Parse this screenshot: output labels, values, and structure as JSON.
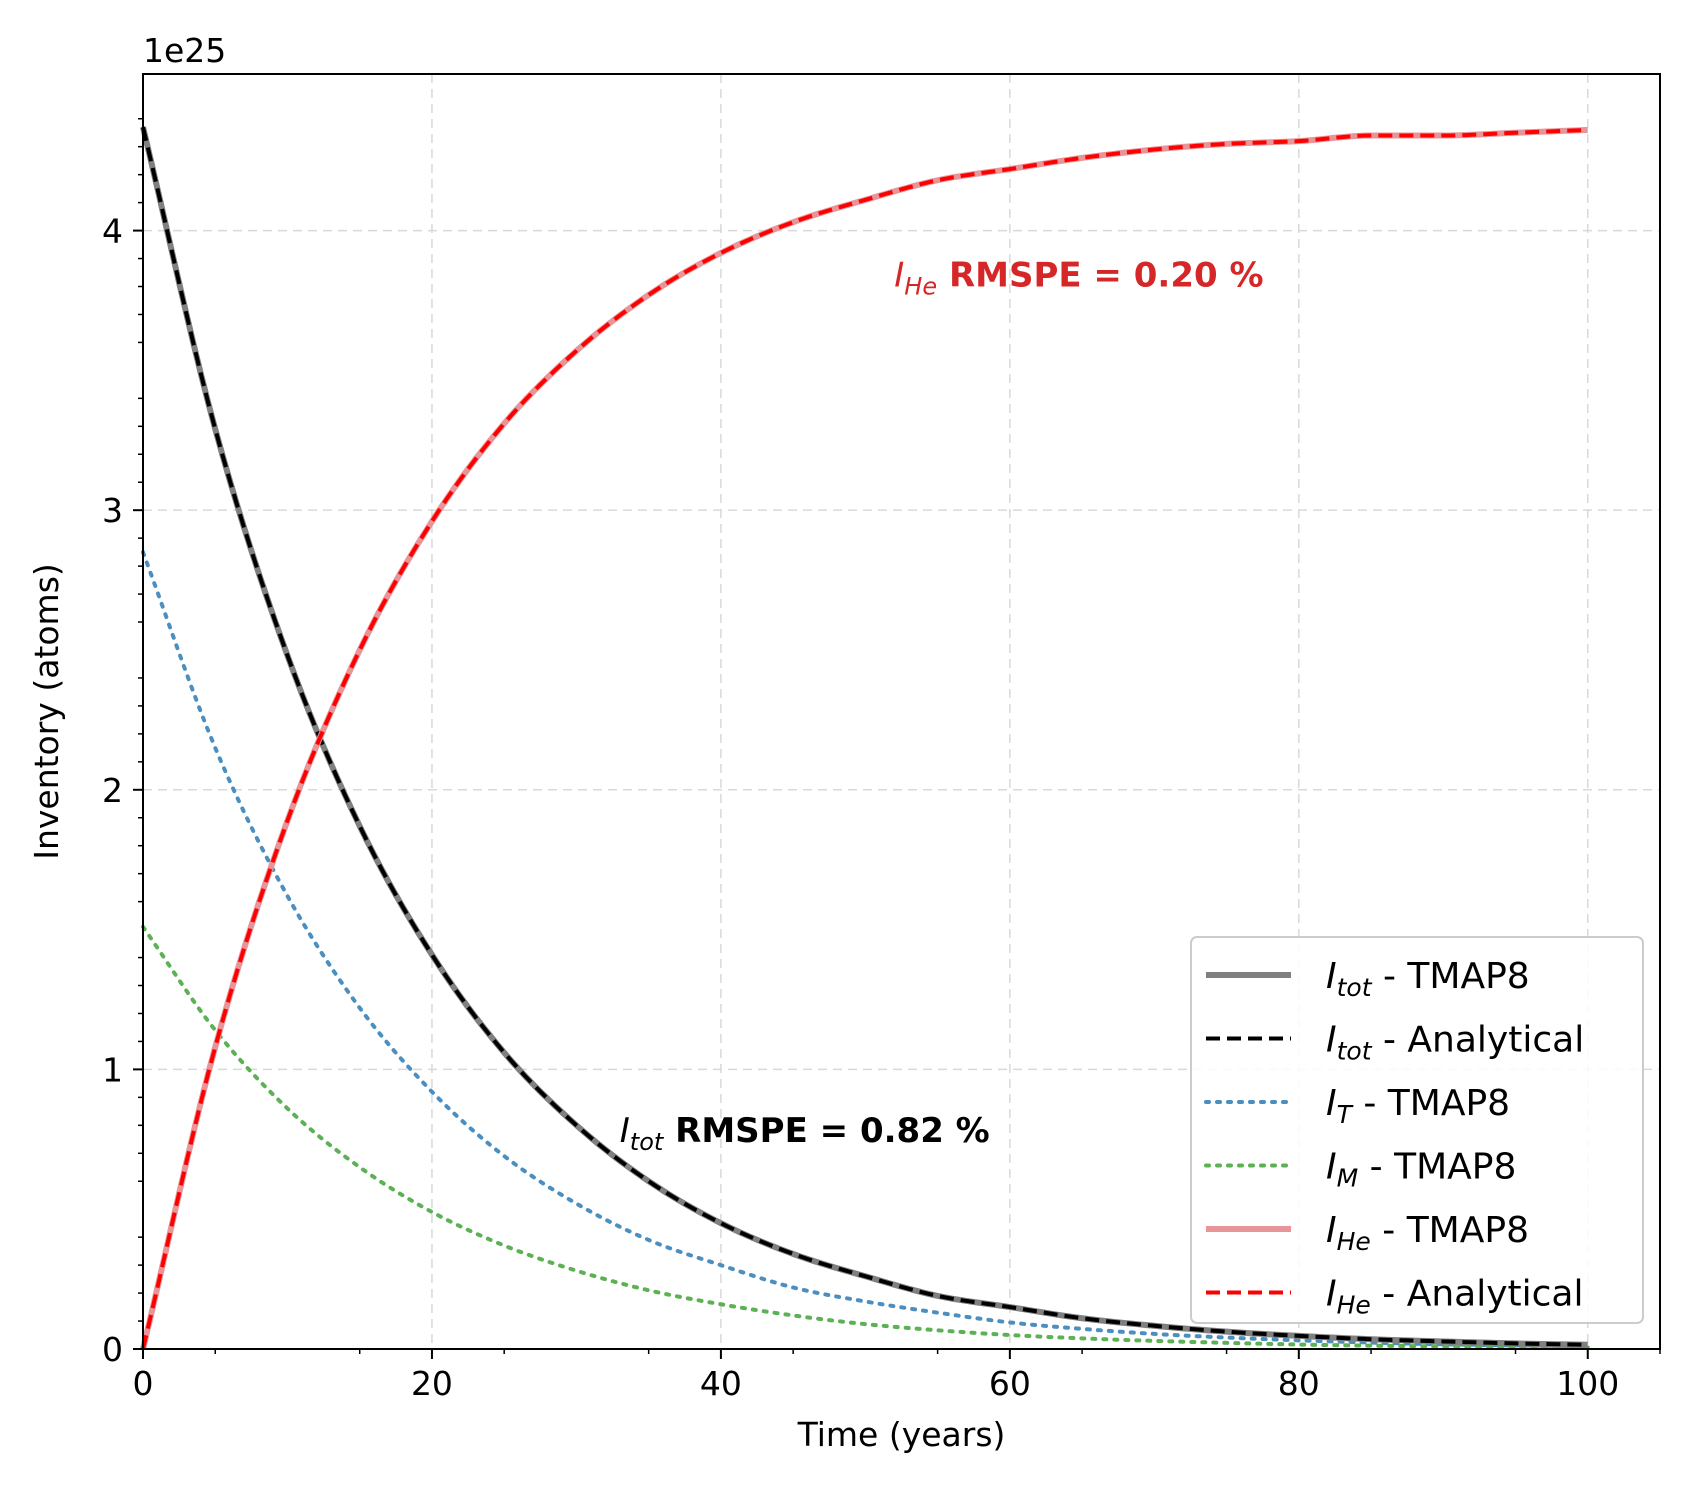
{
  "chart_data": {
    "type": "line",
    "xlabel": "Time (years)",
    "ylabel": "Inventory (atoms)",
    "y_offset_text": "1e25",
    "xlim": [
      0,
      105
    ],
    "ylim": [
      0,
      4.56
    ],
    "y_scale_factor": 1e+25,
    "xticks": [
      0,
      20,
      40,
      60,
      80,
      100
    ],
    "yticks": [
      0,
      1,
      2,
      3,
      4
    ],
    "xtick_labels": [
      "0",
      "20",
      "40",
      "60",
      "80",
      "100"
    ],
    "ytick_labels": [
      "0",
      "1",
      "2",
      "3",
      "4"
    ],
    "grid": true,
    "legend_position": "lower-right",
    "x": [
      0,
      5,
      10,
      15,
      20,
      25,
      30,
      35,
      40,
      45,
      50,
      55,
      60,
      65,
      70,
      75,
      80,
      85,
      90,
      95,
      100
    ],
    "series": [
      {
        "key": "Itot_tmap8",
        "label_main": "I",
        "label_sub": "tot",
        "label_suffix": " - TMAP8",
        "color": "#808080",
        "style": "solid",
        "values": [
          4.37,
          3.29,
          2.48,
          1.87,
          1.41,
          1.06,
          0.8,
          0.6,
          0.45,
          0.34,
          0.26,
          0.19,
          0.15,
          0.11,
          0.083,
          0.062,
          0.047,
          0.035,
          0.027,
          0.02,
          0.015
        ]
      },
      {
        "key": "Itot_analytical",
        "label_main": "I",
        "label_sub": "tot",
        "label_suffix": " - Analytical",
        "color": "#000000",
        "style": "dashed",
        "values": [
          4.37,
          3.29,
          2.48,
          1.87,
          1.41,
          1.06,
          0.8,
          0.6,
          0.45,
          0.34,
          0.26,
          0.19,
          0.15,
          0.11,
          0.083,
          0.062,
          0.047,
          0.035,
          0.027,
          0.02,
          0.015
        ]
      },
      {
        "key": "IT_tmap8",
        "label_main": "I",
        "label_sub": "T",
        "label_suffix": " - TMAP8",
        "color": "#4a8fc0",
        "style": "dotted",
        "values": [
          2.85,
          2.15,
          1.62,
          1.22,
          0.92,
          0.69,
          0.52,
          0.39,
          0.3,
          0.22,
          0.17,
          0.13,
          0.095,
          0.072,
          0.054,
          0.041,
          0.031,
          0.023,
          0.017,
          0.013,
          0.01
        ]
      },
      {
        "key": "IM_tmap8",
        "label_main": "I",
        "label_sub": "M",
        "label_suffix": " - TMAP8",
        "color": "#5cb155",
        "style": "dotted",
        "values": [
          1.51,
          1.14,
          0.86,
          0.65,
          0.49,
          0.37,
          0.28,
          0.21,
          0.16,
          0.12,
          0.089,
          0.067,
          0.05,
          0.038,
          0.029,
          0.022,
          0.016,
          0.012,
          0.0093,
          0.007,
          0.0053
        ]
      },
      {
        "key": "IHe_tmap8",
        "label_main": "I",
        "label_sub": "He",
        "label_suffix": " - TMAP8",
        "color": "#e8959a",
        "style": "solid",
        "values": [
          0,
          1.08,
          1.89,
          2.5,
          2.96,
          3.31,
          3.57,
          3.77,
          3.92,
          4.03,
          4.11,
          4.18,
          4.22,
          4.26,
          4.29,
          4.31,
          4.32,
          4.34,
          4.34,
          4.35,
          4.36
        ]
      },
      {
        "key": "IHe_analytical",
        "label_main": "I",
        "label_sub": "He",
        "label_suffix": " - Analytical",
        "color": "#ff0000",
        "style": "dashed",
        "values": [
          0,
          1.08,
          1.89,
          2.5,
          2.96,
          3.31,
          3.57,
          3.77,
          3.92,
          4.03,
          4.11,
          4.18,
          4.22,
          4.26,
          4.29,
          4.31,
          4.32,
          4.34,
          4.34,
          4.35,
          4.36
        ]
      }
    ],
    "annotations": [
      {
        "key": "he",
        "main": "I",
        "sub": "He",
        "text": " RMSPE = 0.20 %",
        "color": "#d62728",
        "x": 52,
        "y": 3.8
      },
      {
        "key": "tot",
        "main": "I",
        "sub": "tot",
        "text": " RMSPE = 0.82 %",
        "color": "#000000",
        "x": 33,
        "y": 0.74
      }
    ]
  }
}
